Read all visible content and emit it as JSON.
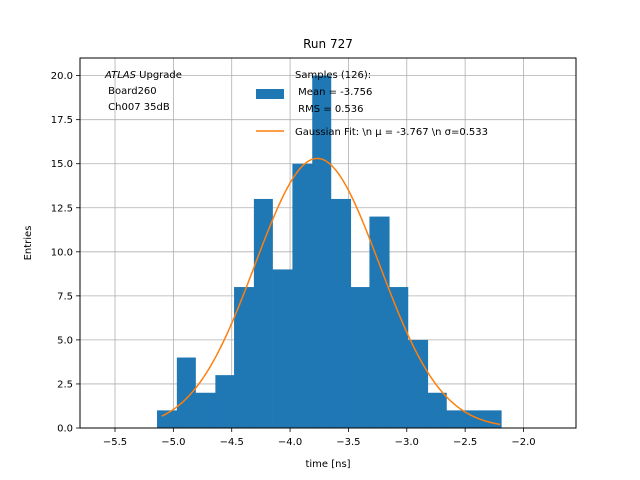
{
  "chart_data": {
    "type": "bar",
    "title": "Run 727",
    "xlabel": "time [ns]",
    "ylabel": "Entries",
    "xlim": [
      -5.8,
      -1.55
    ],
    "ylim": [
      0,
      21
    ],
    "xticks": [
      -5.5,
      -5.0,
      -4.5,
      -4.0,
      -3.5,
      -3.0,
      -2.5,
      -2.0
    ],
    "xtick_labels": [
      "−5.5",
      "−5.0",
      "−4.5",
      "−4.0",
      "−3.5",
      "−3.0",
      "−2.5",
      "−2.0"
    ],
    "yticks": [
      0.0,
      2.5,
      5.0,
      7.5,
      10.0,
      12.5,
      15.0,
      17.5,
      20.0
    ],
    "ytick_labels": [
      "0.0",
      "2.5",
      "5.0",
      "7.5",
      "10.0",
      "12.5",
      "15.0",
      "17.5",
      "20.0"
    ],
    "grid": true,
    "histogram": {
      "bin_edges": [
        -5.14,
        -4.97,
        -4.81,
        -4.64,
        -4.48,
        -4.31,
        -4.15,
        -3.98,
        -3.81,
        -3.65,
        -3.48,
        -3.32,
        -3.15,
        -2.99,
        -2.82,
        -2.66,
        -2.49,
        -2.33,
        -2.19
      ],
      "counts": [
        1,
        4,
        2,
        3,
        8,
        13,
        9,
        15,
        20,
        13,
        8,
        12,
        8,
        5,
        2,
        1,
        1,
        1
      ],
      "color": "#1f77b4"
    },
    "gaussian_fit": {
      "amplitude": 15.3,
      "mu": -3.767,
      "sigma": 0.533,
      "x_range": [
        -5.1,
        -2.2
      ],
      "color": "#ff7f0e"
    },
    "annotation": {
      "italic": "ATLAS",
      "rest": " Upgrade",
      "line2": " Board260",
      "line3": " Ch007 35dB"
    },
    "legend": {
      "position": "top-right",
      "samples_line1": "Samples (126):",
      "samples_line2": " Mean = -3.756",
      "samples_line3": " RMS = 0.536",
      "fit_label": "Gaussian Fit: \\n μ = -3.767 \\n σ=0.533"
    }
  }
}
